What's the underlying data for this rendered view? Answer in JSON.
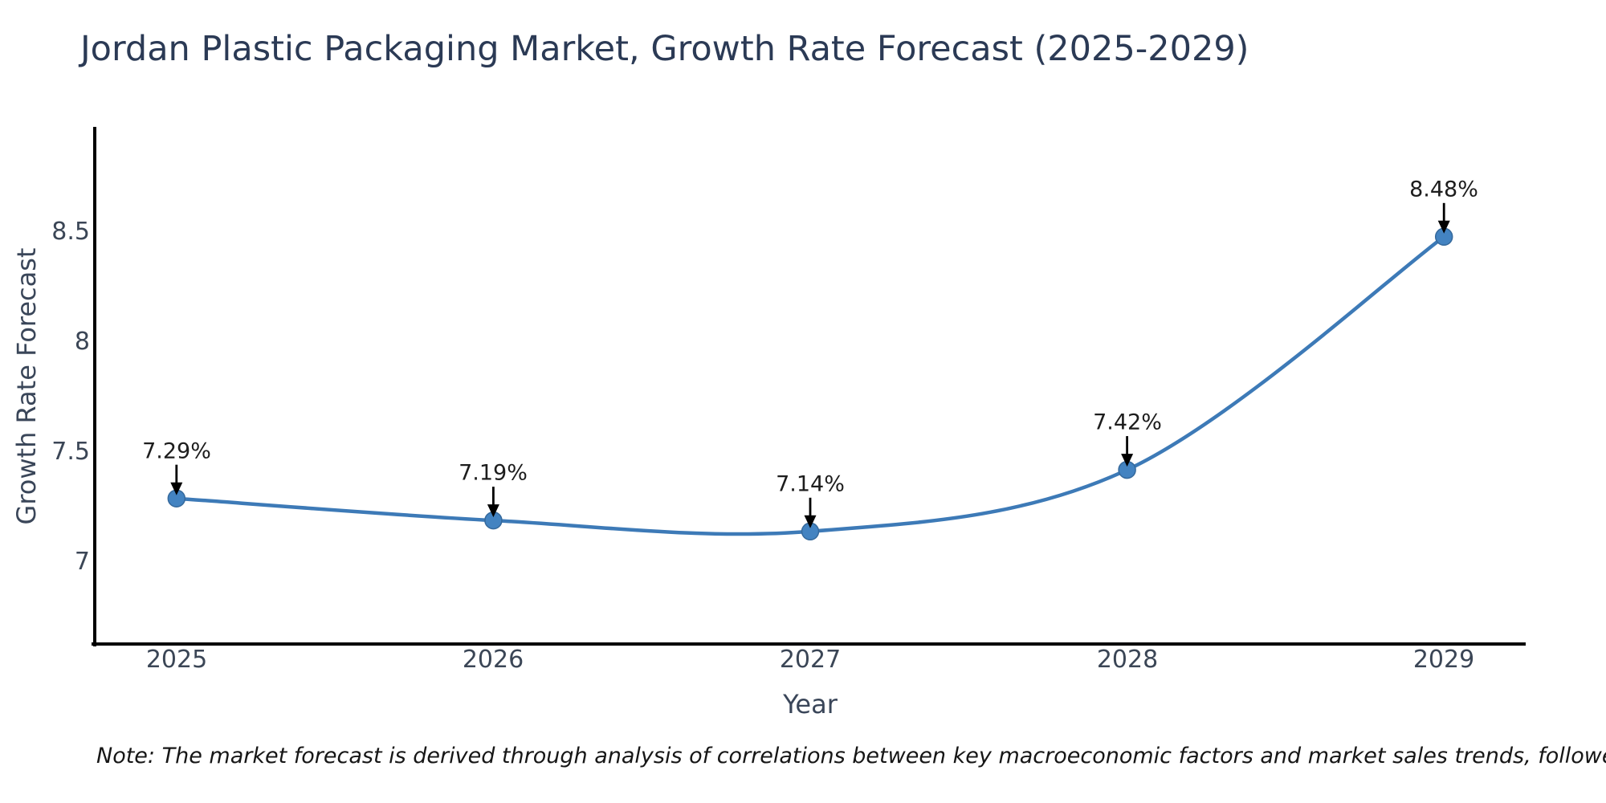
{
  "note": "Note: The market forecast is derived through analysis of correlations between key macroeconomic factors and market sales trends, followed by predictive modeling to project future sales",
  "chart_data": {
    "type": "line",
    "title": "Jordan Plastic Packaging Market, Growth Rate Forecast (2025-2029)",
    "xlabel": "Year",
    "ylabel": "Growth Rate Forecast",
    "categories": [
      "2025",
      "2026",
      "2027",
      "2028",
      "2029"
    ],
    "values": [
      7.29,
      7.19,
      7.14,
      7.42,
      8.48
    ],
    "point_labels": [
      "7.29%",
      "7.19%",
      "7.14%",
      "7.42%",
      "8.48%"
    ],
    "ytick_values": [
      7,
      7.5,
      8,
      8.5
    ],
    "ytick_labels": [
      "7",
      "7.5",
      "8",
      "8.5"
    ],
    "xlim": [
      2024.742,
      2029.258
    ],
    "ylim": [
      6.628,
      8.972
    ],
    "grid": false,
    "legend": false,
    "line_shape": "spline",
    "line_color": "#3d7ab7",
    "marker_color": "#4383c1",
    "marker_edge_color": "#35699c",
    "axis_color": "#000000",
    "annotation_arrow_color": "#000000",
    "annotation_text_color": "#1d1d1d",
    "tick_label_color": "#3b4656",
    "title_color": "#2b3a55"
  }
}
